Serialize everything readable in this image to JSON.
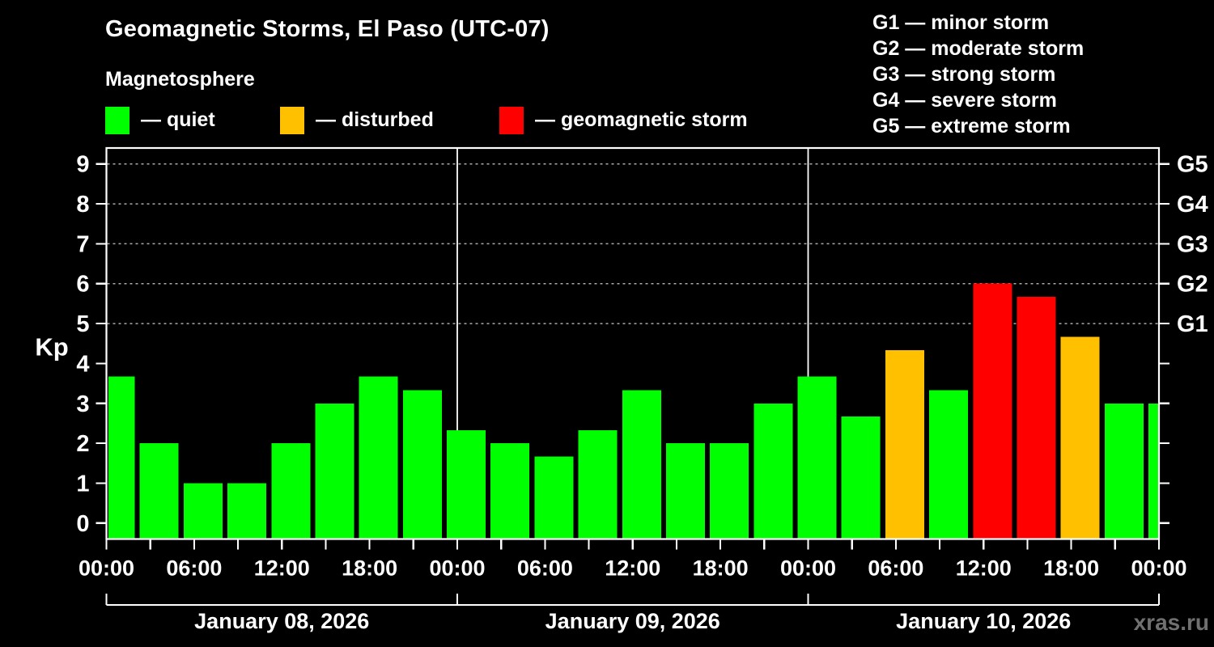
{
  "page": {
    "background": "#000000",
    "watermark": "xras.ru"
  },
  "header": {
    "title": "Geomagnetic Storms, El Paso (UTC-07)",
    "subtitle": "Magnetosphere"
  },
  "legend": {
    "items": [
      {
        "key": "quiet",
        "label": "— quiet",
        "color": "#00ff00"
      },
      {
        "key": "disturbed",
        "label": "— disturbed",
        "color": "#ffc000"
      },
      {
        "key": "storm",
        "label": "— geomagnetic storm",
        "color": "#ff0000"
      }
    ]
  },
  "storm_scale": {
    "items": [
      "G1 — minor storm",
      "G2 — moderate storm",
      "G3 — strong storm",
      "G4 — severe storm",
      "G5 — extreme storm"
    ]
  },
  "chart_data": {
    "type": "bar",
    "title": "Geomagnetic Storms, El Paso (UTC-07)",
    "subtitle": "Magnetosphere",
    "ylabel": "Kp",
    "xlabel": "",
    "ylim": [
      -0.4,
      9.4
    ],
    "yticks": [
      0,
      1,
      2,
      3,
      4,
      5,
      6,
      7,
      8,
      9
    ],
    "grid_values": [
      5,
      6,
      7,
      8,
      9
    ],
    "grid_style": "dashed",
    "legend_position": "top",
    "right_axis": [
      {
        "value": 5,
        "label": "G1"
      },
      {
        "value": 6,
        "label": "G2"
      },
      {
        "value": 7,
        "label": "G3"
      },
      {
        "value": 8,
        "label": "G4"
      },
      {
        "value": 9,
        "label": "G5"
      }
    ],
    "hours_per_bin": 3,
    "x_hour_labels": [
      "00:00",
      "06:00",
      "12:00",
      "18:00",
      "00:00",
      "06:00",
      "12:00",
      "18:00",
      "00:00",
      "06:00",
      "12:00",
      "18:00",
      "00:00"
    ],
    "days": [
      {
        "date": "January 08, 2026",
        "kp": [
          3.67,
          2.0,
          1.0,
          1.0,
          2.0,
          3.0,
          3.67,
          3.33
        ]
      },
      {
        "date": "January 09, 2026",
        "kp": [
          2.33,
          2.0,
          1.67,
          2.33,
          3.33,
          2.0,
          2.0,
          3.0
        ]
      },
      {
        "date": "January 10, 2026",
        "kp": [
          3.67,
          2.67,
          4.33,
          3.33,
          6.0,
          5.67,
          4.67,
          3.0
        ]
      }
    ],
    "extra_bin_kp": 3.0,
    "thresholds": {
      "disturbed_from": 4,
      "storm_from": 5
    },
    "colors": {
      "quiet": "#00ff00",
      "disturbed": "#ffc000",
      "storm": "#ff0000"
    }
  }
}
